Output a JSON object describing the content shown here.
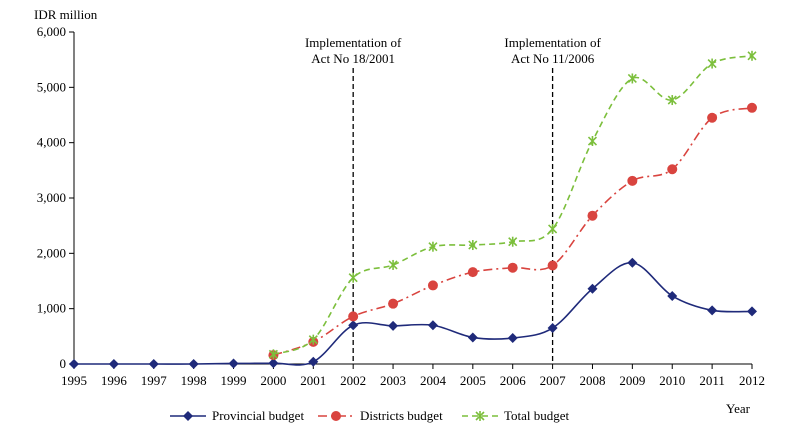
{
  "chart_data": {
    "type": "line",
    "ylabel": "IDR million",
    "xlabel": "Year",
    "ylim": [
      0,
      6000
    ],
    "yticks": [
      0,
      1000,
      2000,
      3000,
      4000,
      5000,
      6000
    ],
    "ytick_labels": [
      "0",
      "1,000",
      "2,000",
      "3,000",
      "4,000",
      "5,000",
      "6,000"
    ],
    "x": [
      "1995",
      "1996",
      "1997",
      "1998",
      "1999",
      "2000",
      "2001",
      "2002",
      "2003",
      "2004",
      "2005",
      "2006",
      "2007",
      "2008",
      "2009",
      "2010",
      "2011",
      "2012"
    ],
    "series": [
      {
        "name": "Provincial budget",
        "color": "#1f2a7a",
        "marker": "diamond",
        "dash": "solid",
        "values": [
          0,
          0,
          0,
          0,
          10,
          15,
          40,
          700,
          690,
          700,
          480,
          470,
          650,
          1360,
          1830,
          1230,
          970,
          950
        ]
      },
      {
        "name": "Districts budget",
        "color": "#d9443f",
        "marker": "circle",
        "dash": "dashdot",
        "values": [
          null,
          null,
          null,
          null,
          null,
          160,
          400,
          860,
          1090,
          1420,
          1660,
          1740,
          1780,
          2680,
          3310,
          3520,
          4450,
          4630
        ]
      },
      {
        "name": "Total budget",
        "color": "#7cbf3c",
        "marker": "star",
        "dash": "dashed",
        "values": [
          null,
          null,
          null,
          null,
          null,
          175,
          440,
          1560,
          1790,
          2120,
          2150,
          2210,
          2440,
          4030,
          5160,
          4770,
          5430,
          5570
        ]
      }
    ],
    "annotations": [
      {
        "x": "2002",
        "label_lines": [
          "Implementation of",
          "Act No 18/2001"
        ]
      },
      {
        "x": "2007",
        "label_lines": [
          "Implementation of",
          "Act No 11/2006"
        ]
      }
    ],
    "grid": false,
    "legend_position": "bottom"
  }
}
